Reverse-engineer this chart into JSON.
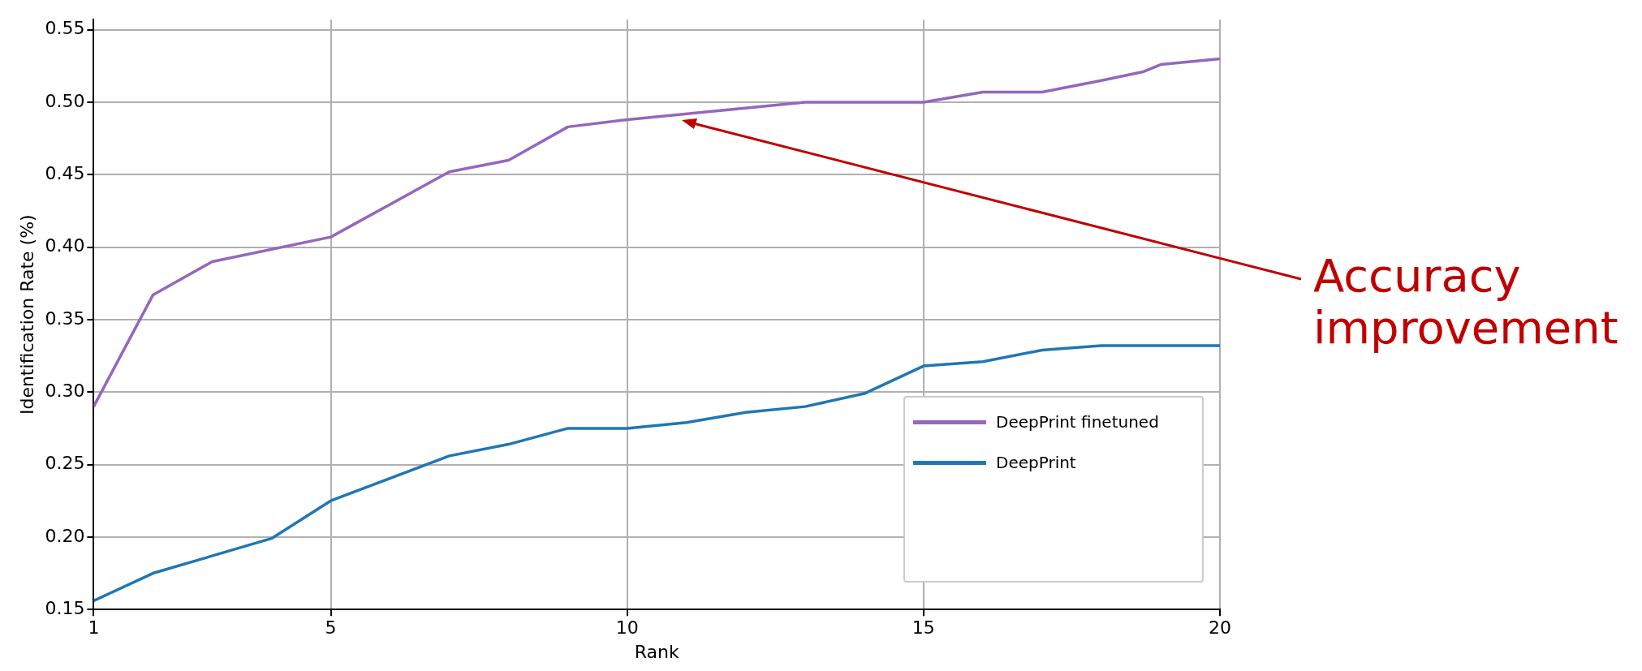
{
  "chart_data": {
    "type": "line",
    "xlabel": "Rank",
    "ylabel": "Identification Rate (%)",
    "xlim": [
      1,
      20
    ],
    "xticks": [
      1,
      5,
      10,
      15,
      20
    ],
    "ylim": [
      0.15,
      0.557
    ],
    "yticks": [
      {
        "value": 0.15,
        "label": "0.15"
      },
      {
        "value": 0.2,
        "label": "0.20"
      },
      {
        "value": 0.25,
        "label": "0.25"
      },
      {
        "value": 0.3,
        "label": "0.30"
      },
      {
        "value": 0.35,
        "label": "0.35"
      },
      {
        "value": 0.4,
        "label": "0.40"
      },
      {
        "value": 0.45,
        "label": "0.45"
      },
      {
        "value": 0.5,
        "label": "0.50"
      },
      {
        "value": 0.55,
        "label": "0.55"
      }
    ],
    "grid": true,
    "legend": "bottom right",
    "marker": "none",
    "line_style": "solid",
    "series": [
      {
        "name": "DeepPrint finetuned",
        "color": "#9467bd",
        "x": [
          1,
          2,
          3,
          5,
          7,
          8,
          9,
          10,
          13,
          15,
          16,
          17,
          18,
          18.7,
          19,
          20
        ],
        "values": [
          0.29,
          0.367,
          0.39,
          0.407,
          0.452,
          0.46,
          0.483,
          0.488,
          0.5,
          0.5,
          0.507,
          0.507,
          0.515,
          0.521,
          0.526,
          0.53
        ]
      },
      {
        "name": "DeepPrint",
        "color": "#1f77b4",
        "x": [
          1,
          2,
          4,
          5,
          7,
          8,
          9,
          10,
          11,
          12,
          13,
          14,
          15,
          16,
          17,
          18,
          20
        ],
        "values": [
          0.156,
          0.175,
          0.199,
          0.225,
          0.256,
          0.264,
          0.275,
          0.275,
          0.279,
          0.286,
          0.29,
          0.299,
          0.318,
          0.321,
          0.329,
          0.332,
          0.332
        ]
      }
    ],
    "annotations": [
      "Accuracy improvement"
    ]
  }
}
